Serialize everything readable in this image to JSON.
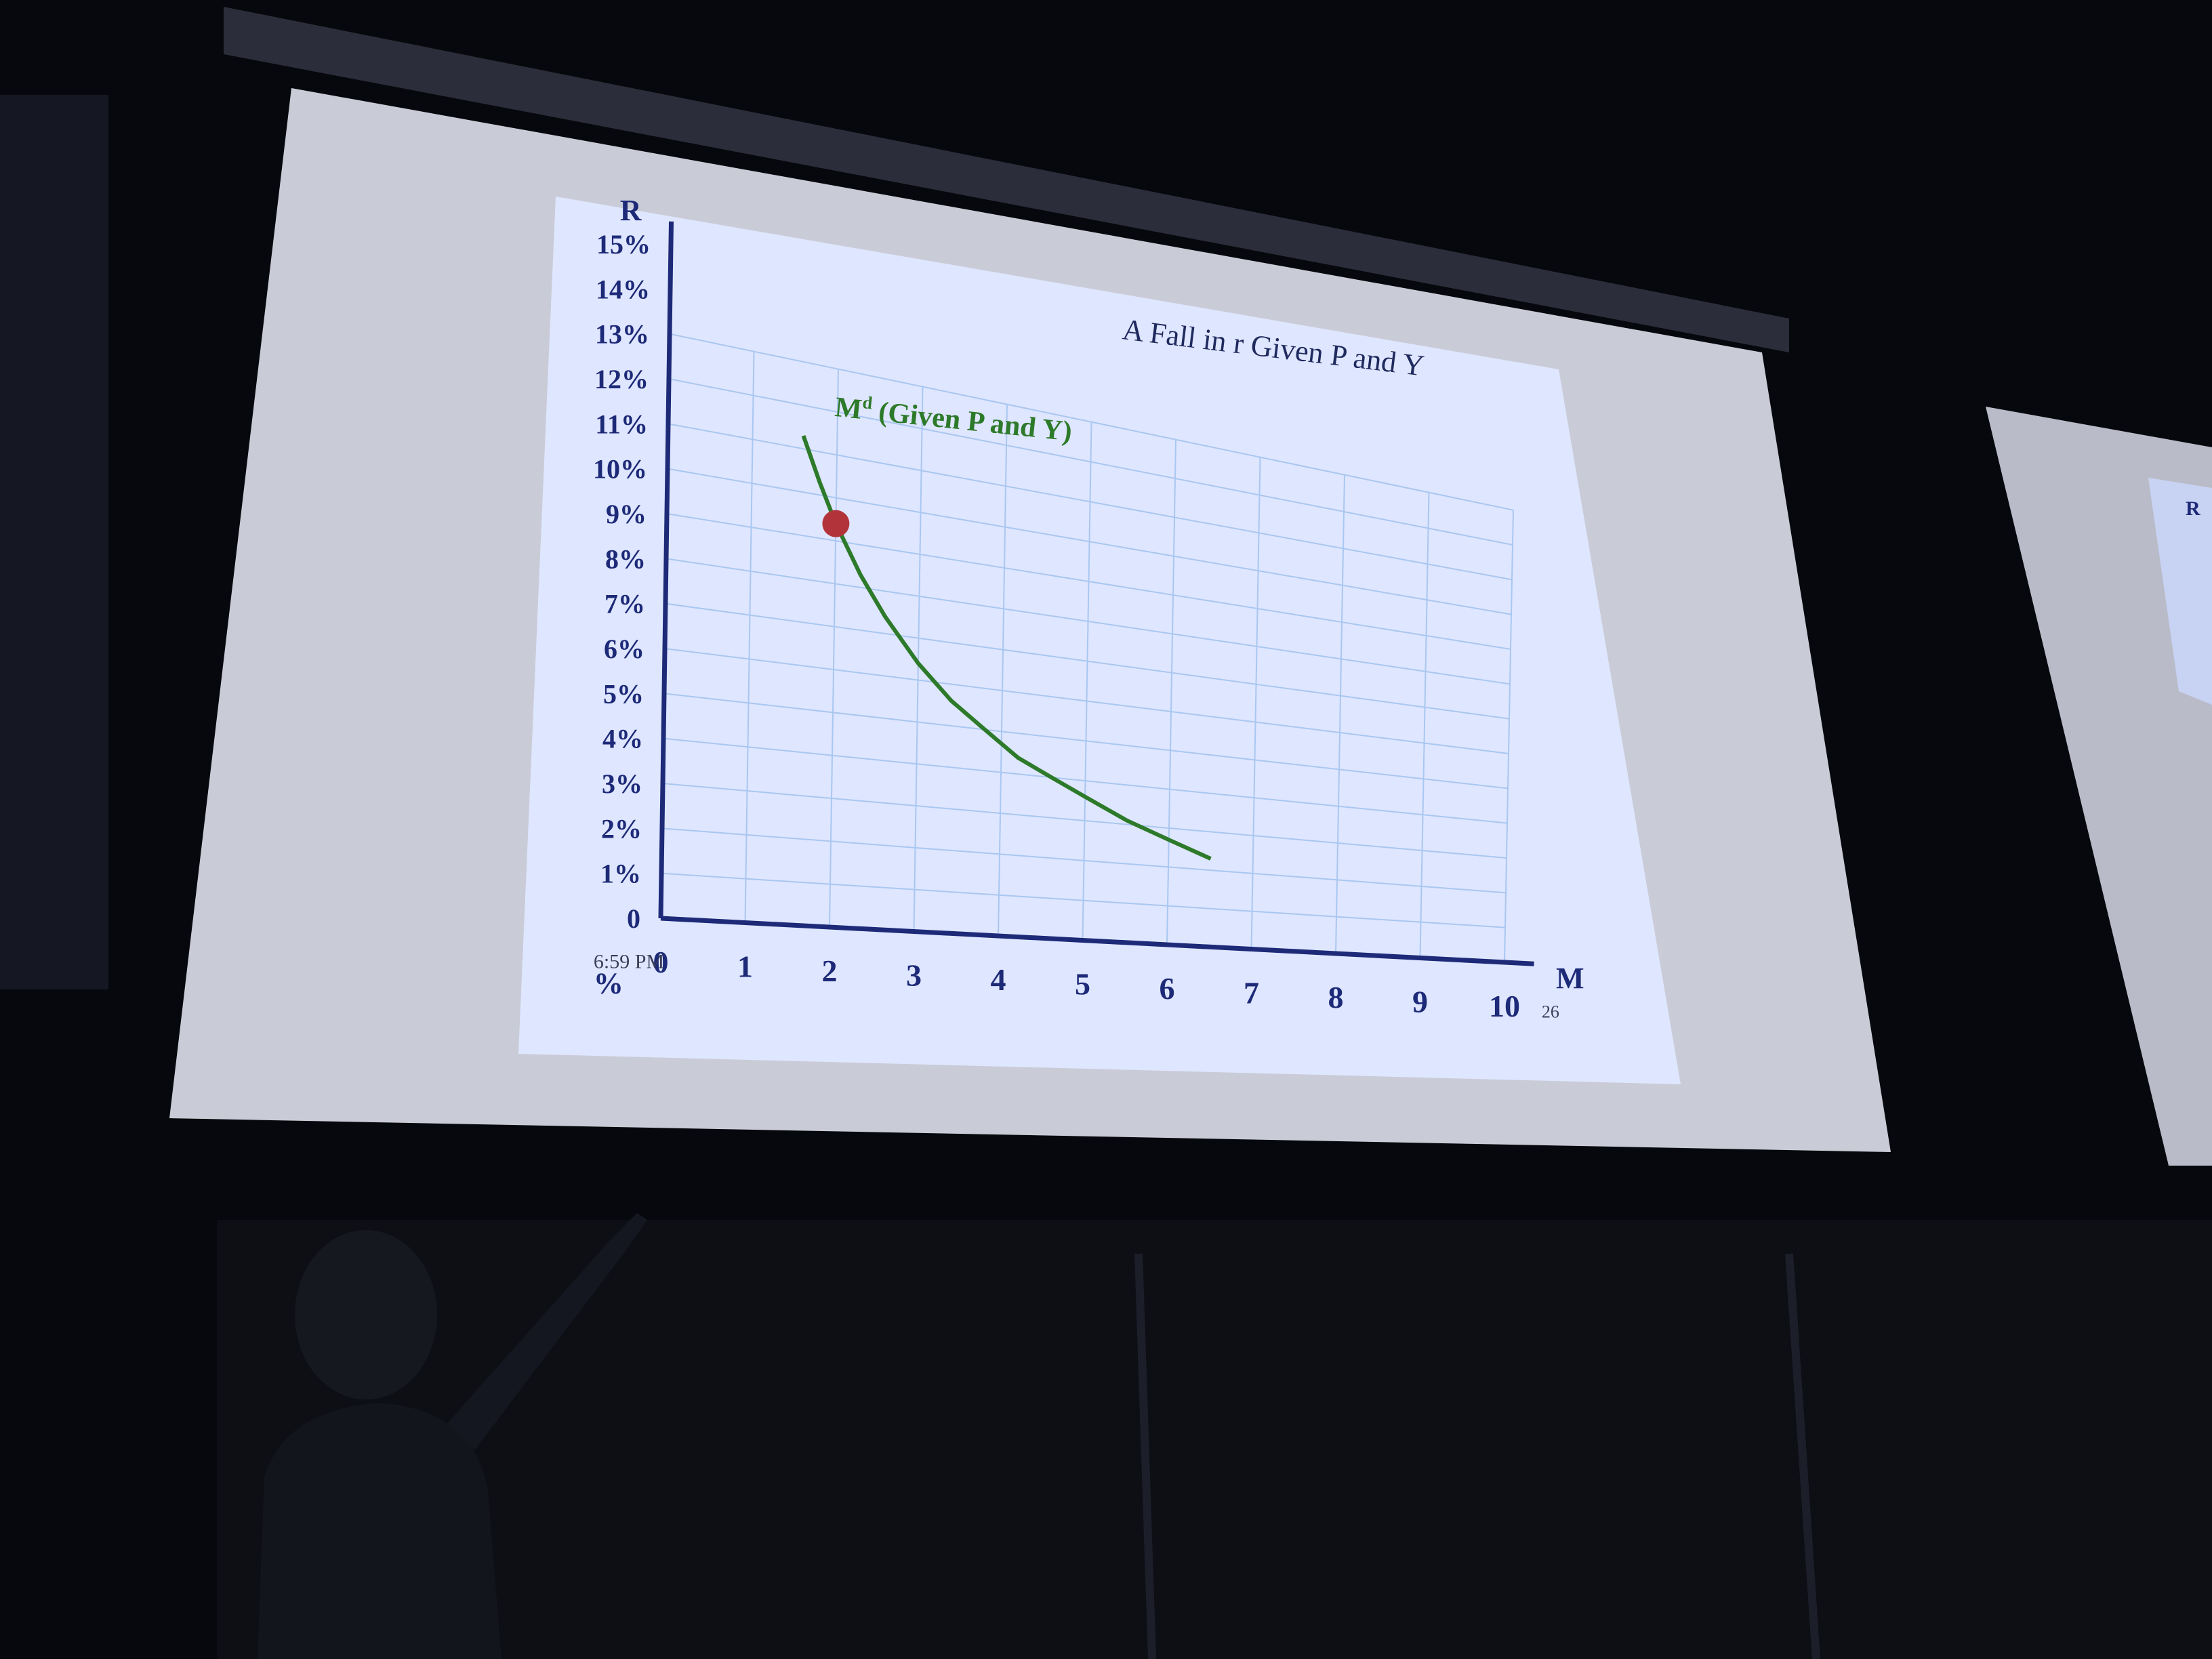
{
  "colors": {
    "background": "#07080d",
    "screen_frame": "#c9ccd6",
    "slide": "#dfe6ff",
    "grid": "#a9c7f0",
    "axis": "#1d2a78",
    "curve": "#2d7a2a",
    "marker": "#b2343a"
  },
  "chart_data": {
    "type": "line",
    "title": "A Fall in r Given P and Y",
    "xlabel": "M",
    "ylabel": "R",
    "x_ticks": [
      "0",
      "1",
      "2",
      "3",
      "4",
      "5",
      "6",
      "7",
      "8",
      "9",
      "10"
    ],
    "y_ticks": [
      "0",
      "1%",
      "2%",
      "3%",
      "4%",
      "5%",
      "6%",
      "7%",
      "8%",
      "9%",
      "10%",
      "11%",
      "12%",
      "13%",
      "14%",
      "15%"
    ],
    "xlim": [
      0,
      10
    ],
    "ylim": [
      0,
      15
    ],
    "grid": true,
    "series": [
      {
        "name": "Md (Given P and Y)",
        "name_base": "M",
        "name_sup": "d",
        "name_rest": " (Given P and Y)",
        "x": [
          1.6,
          1.8,
          2.0,
          2.3,
          2.6,
          3.0,
          3.4,
          3.8,
          4.2,
          4.6,
          5.0,
          5.5,
          6.0,
          6.5
        ],
        "y": [
          11.3,
          10.3,
          9.4,
          8.3,
          7.4,
          6.4,
          5.6,
          5.0,
          4.4,
          4.0,
          3.6,
          3.1,
          2.7,
          2.3
        ]
      }
    ],
    "points": [
      {
        "x": 2.0,
        "y": 9.4
      }
    ]
  },
  "overlay": {
    "timestamp": "6:59 PM",
    "slide_number": "26",
    "origin_fragment": "%"
  }
}
